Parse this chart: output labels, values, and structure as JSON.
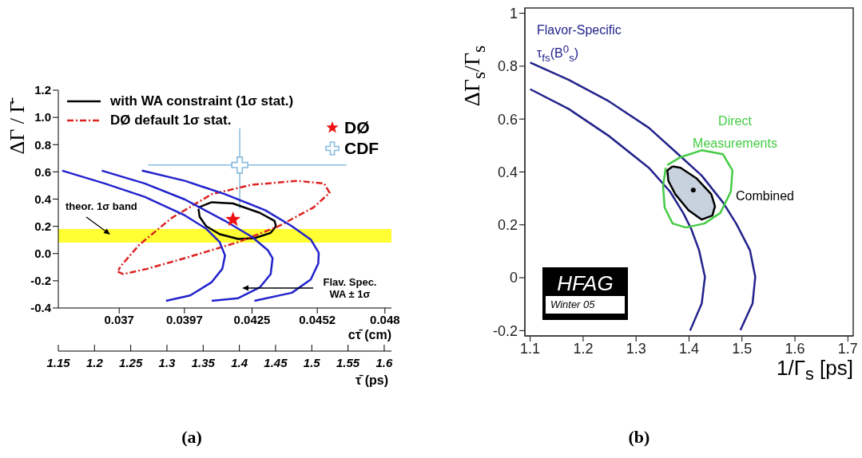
{
  "chart_data": [
    {
      "type": "line",
      "xlabel": "cτ̄ (cm)",
      "x2label": "τ̄ (ps)",
      "ylabel": "ΔΓ / Γ̄",
      "xlim": [
        0.03448,
        0.04827
      ],
      "xticks": [
        0.037,
        0.0397,
        0.0425,
        0.0452,
        0.048
      ],
      "x2lim": [
        1.15,
        1.61
      ],
      "x2ticks": [
        1.15,
        1.2,
        1.25,
        1.3,
        1.35,
        1.4,
        1.45,
        1.5,
        1.55,
        1.6
      ],
      "ylim": [
        -0.4,
        1.2
      ],
      "yticks": [
        -0.4,
        -0.2,
        {
          "value": 0,
          "label": "0.0"
        },
        0.2,
        0.4,
        0.6,
        0.8,
        {
          "value": 1,
          "label": "1.0"
        },
        1.2
      ],
      "legend": "top",
      "bands": [
        {
          "axis": "y",
          "from": 0.08,
          "to": 0.18,
          "color": "#ffff33",
          "label": "theor. 1σ band"
        }
      ],
      "annotations": [
        "Flav. Spec. WA ± 1σ",
        "(a)"
      ],
      "series": [
        {
          "name": "with WA constraint (1σ stat.)",
          "color": "#000000",
          "x": [
            0.04027,
            0.04083,
            0.04171,
            0.04282,
            0.04343,
            0.04349,
            0.04327,
            0.0426,
            0.04193,
            0.04116,
            0.0406,
            0.04033,
            0.04028
          ],
          "values": [
            0.338,
            0.377,
            0.368,
            0.299,
            0.24,
            0.201,
            0.152,
            0.113,
            0.107,
            0.142,
            0.201,
            0.27,
            0.328
          ]
        },
        {
          "name": "DØ default 1σ stat.",
          "color": "#dd2222",
          "line_style": "dashed",
          "x": [
            0.03694,
            0.03717,
            0.03816,
            0.03972,
            0.04193,
            0.0436,
            0.04504,
            0.04571,
            0.04548,
            0.04437,
            0.04249,
            0.04083,
            0.03916,
            0.03783,
            0.03706,
            0.03697
          ],
          "values": [
            -0.132,
            -0.151,
            -0.112,
            -0.034,
            0.084,
            0.201,
            0.338,
            0.446,
            0.515,
            0.534,
            0.505,
            0.436,
            0.26,
            0.064,
            -0.093,
            -0.122
          ]
        },
        {
          "color": "#2222cc",
          "x": [
            0.03464,
            0.03639,
            0.03805,
            0.03972,
            0.0406,
            0.04116,
            0.04138,
            0.04127,
            0.04083,
            0.03994,
            0.03894
          ],
          "values": [
            0.609,
            0.515,
            0.417,
            0.28,
            0.182,
            0.084,
            -0.014,
            -0.112,
            -0.21,
            -0.308,
            -0.347
          ]
        },
        {
          "color": "#2222cc",
          "x": [
            0.03628,
            0.03805,
            0.03972,
            0.04138,
            0.04249,
            0.04315,
            0.04335,
            0.04327,
            0.04282,
            0.04193,
            0.04083
          ],
          "values": [
            0.609,
            0.515,
            0.397,
            0.24,
            0.123,
            0.025,
            -0.034,
            -0.151,
            -0.249,
            -0.328,
            -0.347
          ]
        },
        {
          "color": "#2222cc",
          "x": [
            0.03794,
            0.03972,
            0.04138,
            0.04304,
            0.04415,
            0.04493,
            0.04526,
            0.04524,
            0.04493,
            0.04415,
            0.0426
          ],
          "values": [
            0.609,
            0.534,
            0.436,
            0.319,
            0.201,
            0.103,
            0.005,
            -0.073,
            -0.191,
            -0.288,
            -0.347
          ]
        },
        {
          "type": "scatter",
          "name": "DØ",
          "color": "#ee1111",
          "marker": "star",
          "x": [
            0.04171
          ],
          "values": [
            0.25
          ]
        },
        {
          "type": "scatter",
          "name": "CDF",
          "color": "#88bbdd",
          "marker": "cross",
          "x": [
            0.04199
          ],
          "values": [
            0.65
          ],
          "errors": [
            [
              0.33,
              0.92
            ]
          ],
          "xerrors": [
            [
              0.0382,
              0.0464
            ]
          ]
        }
      ]
    },
    {
      "type": "line",
      "xlabel": "1/Γ$_{s}$ [ps]",
      "ylabel": "ΔΓ$_{s}$/Γ$_{s}$",
      "xlim": [
        1.09,
        1.71
      ],
      "xticks": [
        1.1,
        1.2,
        1.3,
        1.4,
        1.5,
        1.6,
        1.7
      ],
      "ylim": [
        -0.22,
        1.02
      ],
      "yticks": [
        -0.2,
        0,
        0.2,
        0.4,
        0.6,
        0.8,
        1
      ],
      "legend": false,
      "annotations": [
        "HFAG",
        "Winter 05",
        "(b)"
      ],
      "series": [
        {
          "name": "Flavor-Specific τ$_{fs}$(B$^{0}$$_{s}$)",
          "color": "#22228c",
          "x": [
            1.1,
            1.173,
            1.248,
            1.324,
            1.374,
            1.424,
            1.464,
            1.489,
            1.515,
            1.525,
            1.52,
            1.497
          ],
          "values": [
            0.814,
            0.748,
            0.668,
            0.567,
            0.477,
            0.386,
            0.285,
            0.205,
            0.104,
            0.003,
            -0.097,
            -0.198
          ]
        },
        {
          "color": "#22228c",
          "x": [
            1.1,
            1.173,
            1.248,
            1.324,
            1.364,
            1.389,
            1.404,
            1.419,
            1.43,
            1.424,
            1.402
          ],
          "values": [
            0.713,
            0.638,
            0.537,
            0.416,
            0.326,
            0.245,
            0.185,
            0.104,
            0.003,
            -0.097,
            -0.2
          ]
        },
        {
          "name": "Direct Measurements",
          "color": "#44cc44",
          "x": [
            1.359,
            1.384,
            1.424,
            1.464,
            1.482,
            1.479,
            1.459,
            1.429,
            1.394,
            1.369,
            1.354,
            1.351,
            1.356
          ],
          "values": [
            0.426,
            0.456,
            0.482,
            0.467,
            0.406,
            0.326,
            0.245,
            0.205,
            0.19,
            0.205,
            0.265,
            0.346,
            0.416
          ]
        },
        {
          "type": "area",
          "name": "Combined",
          "color": "#c8d2de",
          "x": [
            1.369,
            1.384,
            1.414,
            1.442,
            1.449,
            1.444,
            1.424,
            1.399,
            1.374,
            1.361,
            1.359,
            1.369
          ],
          "values": [
            0.421,
            0.416,
            0.376,
            0.316,
            0.27,
            0.235,
            0.22,
            0.255,
            0.316,
            0.366,
            0.406,
            0.421
          ]
        },
        {
          "type": "scatter",
          "color": "#000000",
          "marker": "circle",
          "x": [
            1.408
          ],
          "values": [
            0.331
          ]
        }
      ]
    }
  ]
}
